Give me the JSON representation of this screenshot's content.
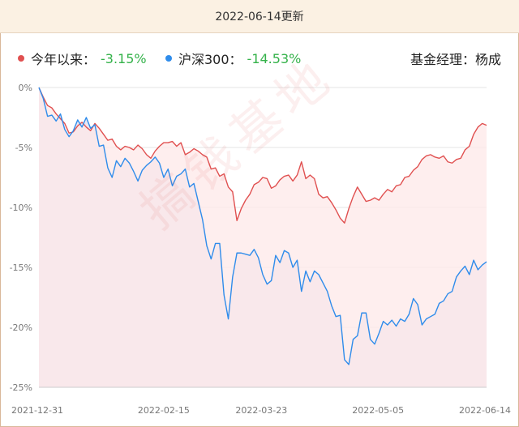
{
  "header": {
    "title": "2022-06-14更新"
  },
  "legend": {
    "fund": {
      "label": "今年以来：",
      "value": "-3.15%",
      "color": "#e05050"
    },
    "index": {
      "label": "沪深300：",
      "value": "-14.53%",
      "color": "#2f8ceb"
    },
    "manager": "基金经理：杨成"
  },
  "watermark": "搞钱基地",
  "colors": {
    "fund_line": "#e05050",
    "fund_fill": "#fde8e8",
    "index_line": "#2f8ceb",
    "index_fill": "#ebe8f3",
    "grid": "#e6e6e6",
    "value_text": "#34b24a"
  },
  "chart_data": {
    "type": "line",
    "title": "",
    "xlabel": "",
    "ylabel": "",
    "ylim": [
      -25,
      0
    ],
    "y_ticks": [
      "0%",
      "-5%",
      "-10%",
      "-15%",
      "-20%",
      "-25%"
    ],
    "x_ticks": [
      "2021-12-31",
      "2022-02-15",
      "2022-03-23",
      "2022-05-05",
      "2022-06-14"
    ],
    "x_start": "2021-12-31",
    "x_end": "2022-06-14",
    "grid": true,
    "series": [
      {
        "name": "今年以来",
        "color": "#e05050",
        "values": [
          0.0,
          -0.8,
          -1.5,
          -1.7,
          -2.2,
          -2.6,
          -3.0,
          -3.8,
          -3.7,
          -3.2,
          -2.9,
          -3.3,
          -3.6,
          -3.0,
          -3.4,
          -3.9,
          -4.4,
          -4.3,
          -4.9,
          -5.2,
          -4.9,
          -5.0,
          -5.2,
          -4.8,
          -5.1,
          -5.6,
          -5.9,
          -5.3,
          -4.9,
          -4.6,
          -4.6,
          -4.5,
          -4.9,
          -4.6,
          -5.6,
          -5.4,
          -5.1,
          -5.3,
          -5.6,
          -5.8,
          -6.8,
          -6.7,
          -7.4,
          -7.2,
          -8.3,
          -8.7,
          -11.1,
          -10.1,
          -9.4,
          -8.9,
          -8.1,
          -7.9,
          -7.5,
          -7.6,
          -8.4,
          -8.2,
          -7.7,
          -7.4,
          -7.3,
          -7.8,
          -7.3,
          -6.2,
          -7.6,
          -7.3,
          -7.6,
          -8.9,
          -9.2,
          -9.1,
          -9.6,
          -10.2,
          -10.9,
          -11.3,
          -10.1,
          -9.1,
          -8.3,
          -8.9,
          -9.5,
          -9.4,
          -9.2,
          -9.4,
          -8.9,
          -8.5,
          -8.7,
          -8.2,
          -8.1,
          -7.5,
          -7.4,
          -6.9,
          -6.6,
          -6.0,
          -5.7,
          -5.6,
          -5.8,
          -5.9,
          -5.7,
          -6.2,
          -6.3,
          -6.0,
          -5.9,
          -5.2,
          -4.9,
          -3.9,
          -3.3,
          -3.0,
          -3.15
        ]
      },
      {
        "name": "沪深300",
        "color": "#2f8ceb",
        "values": [
          0.0,
          -0.9,
          -2.4,
          -2.3,
          -2.8,
          -2.2,
          -3.5,
          -4.1,
          -3.6,
          -2.7,
          -3.3,
          -2.5,
          -3.4,
          -3.1,
          -4.9,
          -4.8,
          -6.7,
          -7.5,
          -6.1,
          -6.6,
          -5.9,
          -6.3,
          -7.0,
          -7.8,
          -6.9,
          -6.5,
          -6.2,
          -5.8,
          -6.3,
          -7.5,
          -6.8,
          -8.2,
          -7.4,
          -7.2,
          -6.8,
          -8.3,
          -8.0,
          -9.5,
          -11.0,
          -13.2,
          -14.3,
          -13.0,
          -13.0,
          -17.3,
          -19.3,
          -15.8,
          -13.8,
          -13.8,
          -13.9,
          -14.0,
          -13.5,
          -14.2,
          -15.6,
          -16.4,
          -16.1,
          -14.0,
          -14.6,
          -13.6,
          -13.8,
          -15.0,
          -14.4,
          -17.0,
          -15.3,
          -16.2,
          -15.3,
          -15.6,
          -16.3,
          -17.0,
          -18.2,
          -19.1,
          -19.0,
          -22.7,
          -23.1,
          -21.0,
          -20.7,
          -18.8,
          -18.8,
          -21.0,
          -21.4,
          -20.5,
          -19.5,
          -19.8,
          -19.4,
          -19.9,
          -19.3,
          -19.5,
          -18.9,
          -17.6,
          -18.1,
          -19.8,
          -19.3,
          -19.1,
          -18.9,
          -18.0,
          -17.8,
          -17.2,
          -17.0,
          -15.8,
          -15.3,
          -14.9,
          -15.6,
          -14.4,
          -15.2,
          -14.8,
          -14.53
        ]
      }
    ]
  }
}
